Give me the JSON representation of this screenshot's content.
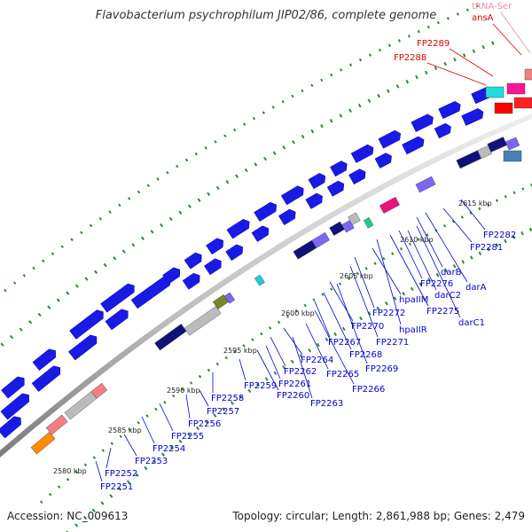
{
  "title": "Flavobacterium psychrophilum JIP02/86, complete genome",
  "footer": {
    "accession": "Accession: NC_009613",
    "summary": "Topology: circular; Length: 2,861,988 bp; Genes: 2,479"
  },
  "colors": {
    "forward_gene": "#1a1ae6",
    "label_blue": "#0000cc",
    "label_red": "#dd0000",
    "label_pink": "#ee88aa",
    "backbone": "#8c8c8c",
    "tick": "#2e8b2e"
  },
  "kbp_labels": [
    "2580 kbp",
    "2585 kbp",
    "2590 kbp",
    "2595 kbp",
    "2600 kbp",
    "2605 kbp",
    "2610 kbp",
    "2615 kbp"
  ],
  "gene_labels": [
    "FP2251",
    "FP2252",
    "FP2253",
    "FP2254",
    "FP2255",
    "FP2256",
    "FP2257",
    "FP2258",
    "FP2259",
    "FP2260",
    "FP2261",
    "FP2262",
    "FP2263",
    "FP2264",
    "FP2265",
    "FP2266",
    "FP2267",
    "FP2268",
    "FP2269",
    "FP2270",
    "FP2271",
    "FP2272",
    "hpaIIM",
    "hpaIIR",
    "FP2275",
    "FP2276",
    "darC2",
    "darC1",
    "darB",
    "darA",
    "FP2281",
    "FP2282"
  ],
  "top_labels": [
    "tRNA-Ser",
    "ansA",
    "FP2289",
    "FP2288"
  ]
}
